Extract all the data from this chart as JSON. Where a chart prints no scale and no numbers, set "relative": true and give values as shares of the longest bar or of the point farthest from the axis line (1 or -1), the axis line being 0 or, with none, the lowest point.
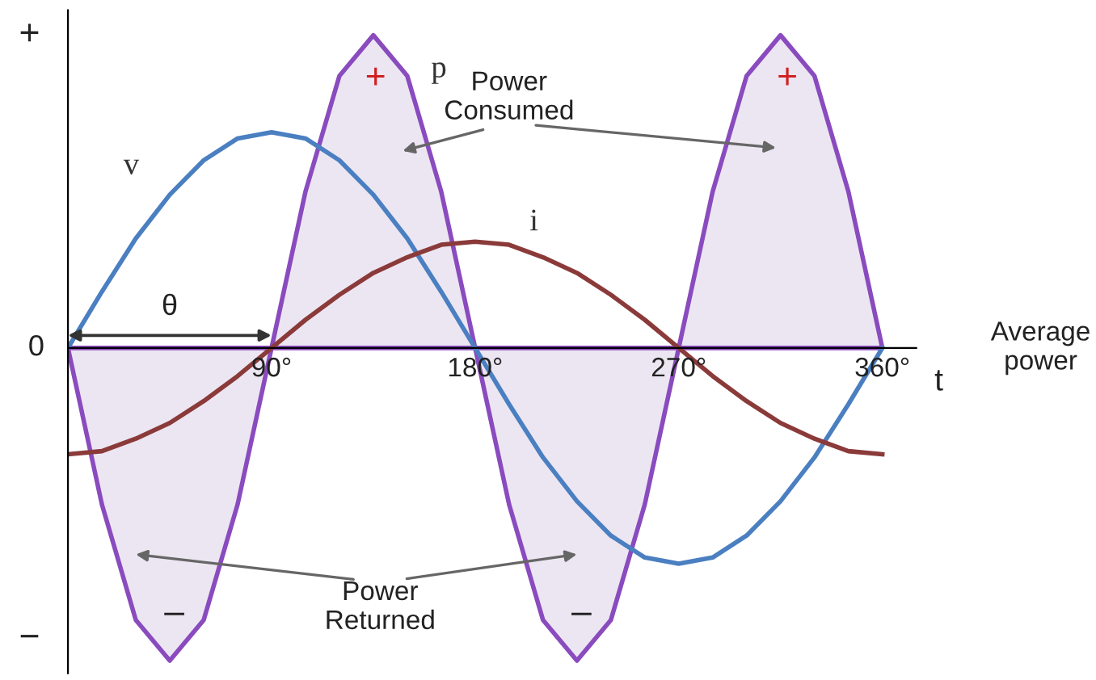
{
  "chart_data": {
    "type": "line",
    "relative": true,
    "legend": false,
    "grid": false,
    "marker": "none",
    "line_style": "solid",
    "x": [
      0,
      15,
      30,
      45,
      60,
      75,
      90,
      105,
      120,
      135,
      150,
      165,
      180,
      195,
      210,
      225,
      240,
      255,
      270,
      285,
      300,
      315,
      330,
      345,
      360
    ],
    "xlim": [
      0,
      375
    ],
    "xticks": [
      {
        "value": 90,
        "label": "90°"
      },
      {
        "value": 180,
        "label": "180°"
      },
      {
        "value": 270,
        "label": "270°"
      },
      {
        "value": 360,
        "label": "360°"
      }
    ],
    "series": [
      {
        "name": "v",
        "color": "#4a7fc1",
        "values": [
          0,
          0.18,
          0.35,
          0.49,
          0.6,
          0.67,
          0.69,
          0.67,
          0.6,
          0.49,
          0.35,
          0.18,
          0,
          -0.18,
          -0.35,
          -0.49,
          -0.6,
          -0.67,
          -0.69,
          -0.67,
          -0.6,
          -0.49,
          -0.35,
          -0.18,
          0
        ]
      },
      {
        "name": "i",
        "color": "#8b3a3a",
        "values": [
          -0.34,
          -0.33,
          -0.29,
          -0.24,
          -0.17,
          -0.09,
          0,
          0.09,
          0.17,
          0.24,
          0.29,
          0.33,
          0.34,
          0.33,
          0.29,
          0.24,
          0.17,
          0.09,
          0,
          -0.09,
          -0.17,
          -0.24,
          -0.29,
          -0.33,
          -0.34
        ]
      },
      {
        "name": "p",
        "type": "area",
        "color": "#8a4bbf",
        "values": [
          0,
          -0.5,
          -0.87,
          -1,
          -0.87,
          -0.5,
          0,
          0.5,
          0.87,
          1,
          0.87,
          0.5,
          0,
          -0.5,
          -0.87,
          -1,
          -0.87,
          -0.5,
          0,
          0.5,
          0.87,
          1,
          0.87,
          0.5,
          0
        ]
      }
    ],
    "annotations": [
      "Power\nConsumed",
      "Power\nReturned",
      "+",
      "+",
      "–",
      "–",
      "θ",
      "Average\npower",
      "t",
      "+",
      "0",
      "−"
    ]
  }
}
